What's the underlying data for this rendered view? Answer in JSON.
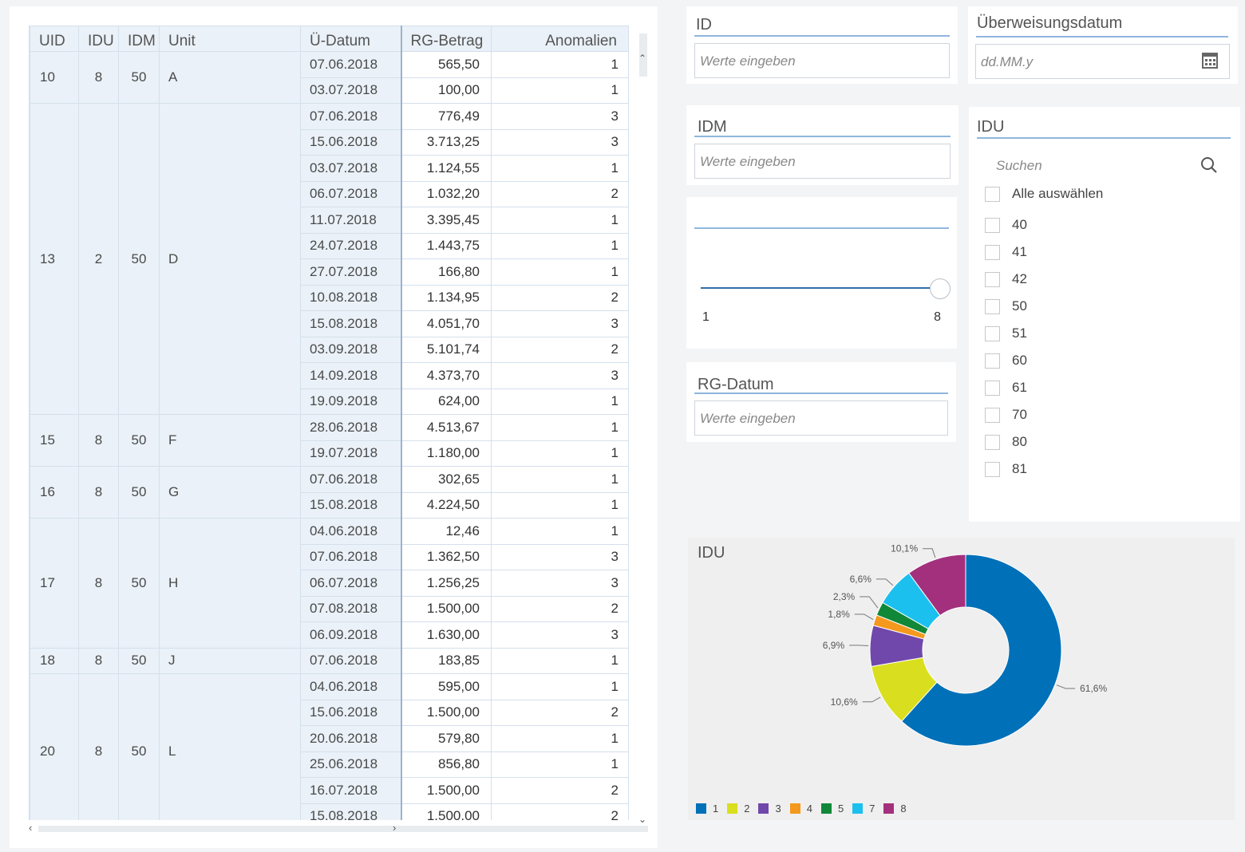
{
  "table": {
    "headers": [
      "UID",
      "IDU",
      "IDM",
      "Unit",
      "Ü-Datum",
      "RG-Betrag",
      "Anomalien"
    ],
    "groups": [
      {
        "uid": "10",
        "idu": "8",
        "idm": "50",
        "unit": "A",
        "rows": [
          [
            "07.06.2018",
            "565,50",
            "1"
          ],
          [
            "03.07.2018",
            "100,00",
            "1"
          ]
        ]
      },
      {
        "uid": "13",
        "idu": "2",
        "idm": "50",
        "unit": "D",
        "rows": [
          [
            "07.06.2018",
            "776,49",
            "3"
          ],
          [
            "15.06.2018",
            "3.713,25",
            "3"
          ],
          [
            "03.07.2018",
            "1.124,55",
            "1"
          ],
          [
            "06.07.2018",
            "1.032,20",
            "2"
          ],
          [
            "11.07.2018",
            "3.395,45",
            "1"
          ],
          [
            "24.07.2018",
            "1.443,75",
            "1"
          ],
          [
            "27.07.2018",
            "166,80",
            "1"
          ],
          [
            "10.08.2018",
            "1.134,95",
            "2"
          ],
          [
            "15.08.2018",
            "4.051,70",
            "3"
          ],
          [
            "03.09.2018",
            "5.101,74",
            "2"
          ],
          [
            "14.09.2018",
            "4.373,70",
            "3"
          ],
          [
            "19.09.2018",
            "624,00",
            "1"
          ]
        ]
      },
      {
        "uid": "15",
        "idu": "8",
        "idm": "50",
        "unit": "F",
        "rows": [
          [
            "28.06.2018",
            "4.513,67",
            "1"
          ],
          [
            "19.07.2018",
            "1.180,00",
            "1"
          ]
        ]
      },
      {
        "uid": "16",
        "idu": "8",
        "idm": "50",
        "unit": "G",
        "rows": [
          [
            "07.06.2018",
            "302,65",
            "1"
          ],
          [
            "15.08.2018",
            "4.224,50",
            "1"
          ]
        ]
      },
      {
        "uid": "17",
        "idu": "8",
        "idm": "50",
        "unit": "H",
        "rows": [
          [
            "04.06.2018",
            "12,46",
            "1"
          ],
          [
            "07.06.2018",
            "1.362,50",
            "3"
          ],
          [
            "06.07.2018",
            "1.256,25",
            "3"
          ],
          [
            "07.08.2018",
            "1.500,00",
            "2"
          ],
          [
            "06.09.2018",
            "1.630,00",
            "3"
          ]
        ]
      },
      {
        "uid": "18",
        "idu": "8",
        "idm": "50",
        "unit": "J",
        "rows": [
          [
            "07.06.2018",
            "183,85",
            "1"
          ]
        ]
      },
      {
        "uid": "20",
        "idu": "8",
        "idm": "50",
        "unit": "L",
        "rows": [
          [
            "04.06.2018",
            "595,00",
            "1"
          ],
          [
            "15.06.2018",
            "1.500,00",
            "2"
          ],
          [
            "20.06.2018",
            "579,80",
            "1"
          ],
          [
            "25.06.2018",
            "856,80",
            "1"
          ],
          [
            "16.07.2018",
            "1.500,00",
            "2"
          ],
          [
            "15.08.2018",
            "1.500,00",
            "2"
          ]
        ]
      }
    ]
  },
  "filters": {
    "id": {
      "title": "ID",
      "placeholder": "Werte eingeben"
    },
    "ueberweisungsdatum": {
      "title": "Überweisungsdatum",
      "placeholder": "dd.MM.y"
    },
    "idm": {
      "title": "IDM",
      "placeholder": "Werte eingeben"
    },
    "slider": {
      "min_label": "1",
      "max_label": "8",
      "min": 1,
      "max": 8,
      "value": 8
    },
    "rg_datum": {
      "title": "RG-Datum",
      "placeholder": "Werte eingeben"
    },
    "idu": {
      "title": "IDU",
      "search_placeholder": "Suchen",
      "select_all": "Alle auswählen",
      "options": [
        "40",
        "41",
        "42",
        "50",
        "51",
        "60",
        "61",
        "70",
        "80",
        "81"
      ]
    }
  },
  "chart_data": {
    "type": "pie",
    "donut": true,
    "title": "IDU",
    "slices": [
      {
        "label": "1",
        "value": 61.6,
        "value_label": "61,6%",
        "color": "#0070b8"
      },
      {
        "label": "2",
        "value": 10.6,
        "value_label": "10,6%",
        "color": "#d9df1f"
      },
      {
        "label": "3",
        "value": 6.9,
        "value_label": "6,9%",
        "color": "#7048ab"
      },
      {
        "label": "4",
        "value": 1.8,
        "value_label": "1,8%",
        "color": "#f4991d"
      },
      {
        "label": "5",
        "value": 2.3,
        "value_label": "2,3%",
        "color": "#108838"
      },
      {
        "label": "7",
        "value": 6.6,
        "value_label": "6,6%",
        "color": "#1cc0ef"
      },
      {
        "label": "8",
        "value": 10.1,
        "value_label": "10,1%",
        "color": "#a3307d"
      }
    ],
    "legend_position": "bottom-left"
  }
}
